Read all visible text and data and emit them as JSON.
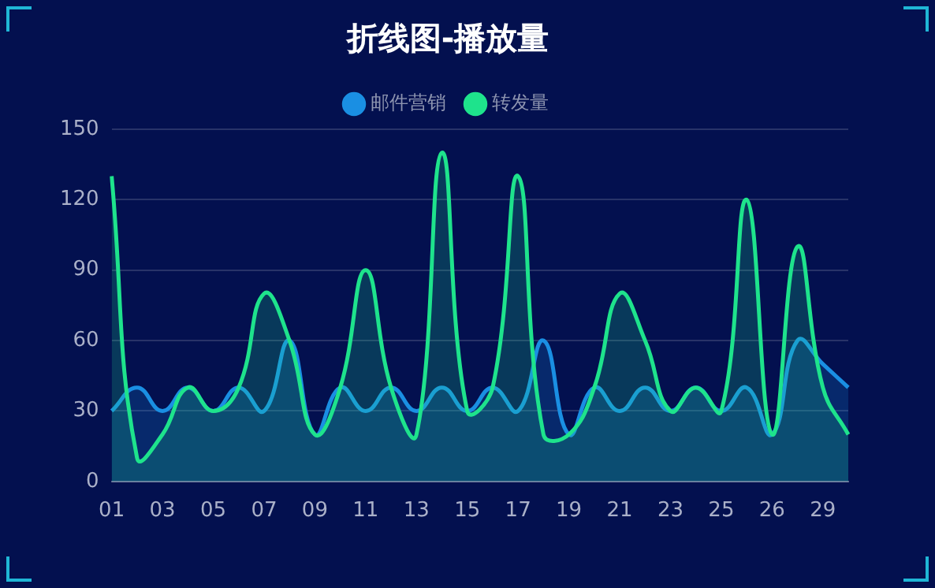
{
  "chart_data": {
    "type": "area",
    "title": "折线图-播放量",
    "categories": [
      "01",
      null,
      "03",
      null,
      "05",
      null,
      "07",
      null,
      "09",
      null,
      "11",
      null,
      "13",
      null,
      "15",
      null,
      "17",
      null,
      "19",
      null,
      "21",
      null,
      "23",
      null,
      "25",
      null,
      "26",
      null,
      "29",
      null
    ],
    "series": [
      {
        "name": "邮件营销",
        "color": "#1a8fe3",
        "values": [
          30,
          40,
          30,
          40,
          30,
          40,
          30,
          60,
          20,
          40,
          30,
          40,
          30,
          40,
          30,
          40,
          30,
          60,
          20,
          40,
          30,
          40,
          30,
          40,
          30,
          40,
          20,
          60,
          50,
          40
        ]
      },
      {
        "name": "转发量",
        "color": "#1ee38c",
        "values": [
          130,
          10,
          20,
          40,
          30,
          40,
          80,
          60,
          20,
          40,
          90,
          40,
          20,
          140,
          30,
          40,
          130,
          20,
          20,
          40,
          80,
          60,
          30,
          40,
          30,
          120,
          20,
          100,
          40,
          20
        ]
      }
    ],
    "ylim": [
      0,
      150
    ],
    "yticks": [
      0,
      30,
      60,
      90,
      120,
      150
    ],
    "grid": "y",
    "legend": "top",
    "marker": "none"
  }
}
